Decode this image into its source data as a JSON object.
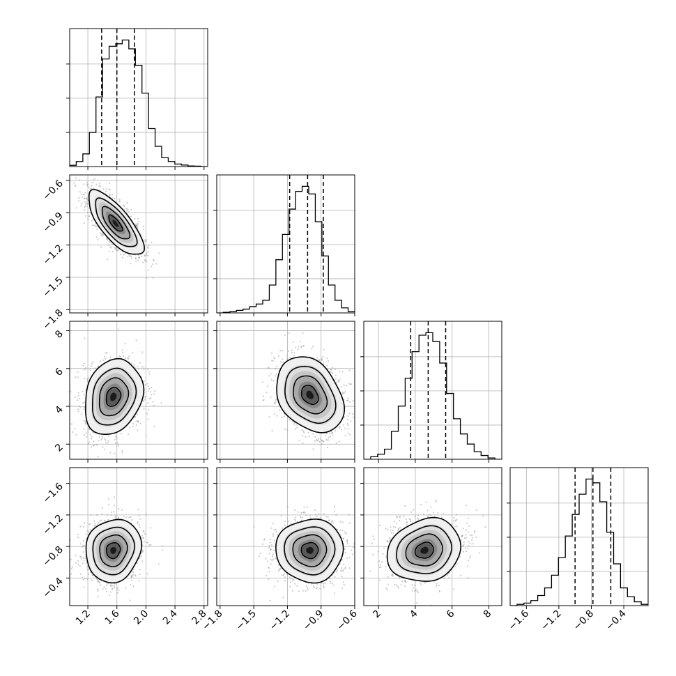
{
  "chart_data": {
    "type": "corner",
    "title": "",
    "grid": true,
    "parameters": [
      {
        "xlim": [
          0.95,
          2.85
        ],
        "ticks": [
          "1.2",
          "1.6",
          "2.0",
          "2.4",
          "2.8"
        ],
        "tick_values": [
          1.2,
          1.6,
          2.0,
          2.4,
          2.8
        ]
      },
      {
        "xlim": [
          -1.83,
          -0.6
        ],
        "ticks": [
          "−1.8",
          "−1.5",
          "−1.2",
          "−0.9",
          "−0.6"
        ],
        "tick_values": [
          -1.8,
          -1.5,
          -1.2,
          -0.9,
          -0.6
        ]
      },
      {
        "xlim": [
          1.2,
          8.7
        ],
        "ticks": [
          "2",
          "4",
          "6",
          "8"
        ],
        "tick_values": [
          2,
          4,
          6,
          8
        ]
      },
      {
        "xlim": [
          -1.8,
          -0.1
        ],
        "ticks": [
          "−1.6",
          "−1.2",
          "−0.8",
          "−0.4"
        ],
        "tick_values": [
          -1.6,
          -1.2,
          -0.8,
          -0.4
        ]
      }
    ],
    "row_ylims": [
      null,
      [
        -1.83,
        -0.55
      ],
      [
        1.2,
        8.5
      ],
      [
        -0.05,
        -1.8
      ]
    ],
    "quantiles": [
      [
        1.39,
        1.6,
        1.84
      ],
      [
        -1.18,
        -1.02,
        -0.88
      ],
      [
        3.75,
        4.7,
        5.65
      ],
      [
        -1.0,
        -0.78,
        -0.56
      ]
    ],
    "histograms": [
      {
        "bins_x": [
          0.95,
          2.85
        ],
        "counts": [
          0.01,
          0.04,
          0.1,
          0.27,
          0.55,
          0.85,
          0.95,
          0.97,
          1.0,
          0.93,
          0.8,
          0.58,
          0.3,
          0.16,
          0.07,
          0.04,
          0.02,
          0.012,
          0.005,
          0.003,
          0.0
        ]
      },
      {
        "bins_x": [
          -1.83,
          -0.6
        ],
        "counts": [
          0.0,
          0.005,
          0.01,
          0.02,
          0.03,
          0.05,
          0.07,
          0.1,
          0.22,
          0.42,
          0.62,
          0.82,
          0.96,
          1.0,
          0.94,
          0.72,
          0.45,
          0.22,
          0.1,
          0.04,
          0.01
        ]
      },
      {
        "bins_x": [
          1.2,
          8.7
        ],
        "counts": [
          0.0,
          0.02,
          0.04,
          0.08,
          0.22,
          0.42,
          0.64,
          0.85,
          0.98,
          1.0,
          0.93,
          0.76,
          0.52,
          0.32,
          0.2,
          0.12,
          0.06,
          0.03,
          0.01,
          0.0
        ]
      },
      {
        "bins_x": [
          -1.8,
          -0.1
        ],
        "counts": [
          0.0,
          0.01,
          0.02,
          0.04,
          0.08,
          0.14,
          0.24,
          0.38,
          0.55,
          0.72,
          0.88,
          1.0,
          0.97,
          0.82,
          0.58,
          0.33,
          0.14,
          0.07,
          0.03,
          0.01
        ]
      }
    ],
    "pairs": [
      {
        "row": 1,
        "col": 0,
        "mean": [
          1.58,
          -1.0
        ],
        "std": [
          0.19,
          0.15
        ],
        "rho": -0.75
      },
      {
        "row": 2,
        "col": 0,
        "mean": [
          1.55,
          4.5
        ],
        "std": [
          0.2,
          1.0
        ],
        "rho": 0.2
      },
      {
        "row": 2,
        "col": 1,
        "mean": [
          -1.0,
          4.6
        ],
        "std": [
          0.15,
          1.0
        ],
        "rho": -0.3
      },
      {
        "row": 3,
        "col": 0,
        "mean": [
          1.55,
          -0.75
        ],
        "std": [
          0.19,
          0.2
        ],
        "rho": -0.1
      },
      {
        "row": 3,
        "col": 1,
        "mean": [
          -1.0,
          -0.75
        ],
        "std": [
          0.15,
          0.2
        ],
        "rho": 0.0
      },
      {
        "row": 3,
        "col": 2,
        "mean": [
          4.5,
          -0.75
        ],
        "std": [
          1.0,
          0.2
        ],
        "rho": -0.15
      }
    ],
    "contour_levels_sigma": [
      0.5,
      1.0,
      1.5,
      2.0
    ]
  }
}
